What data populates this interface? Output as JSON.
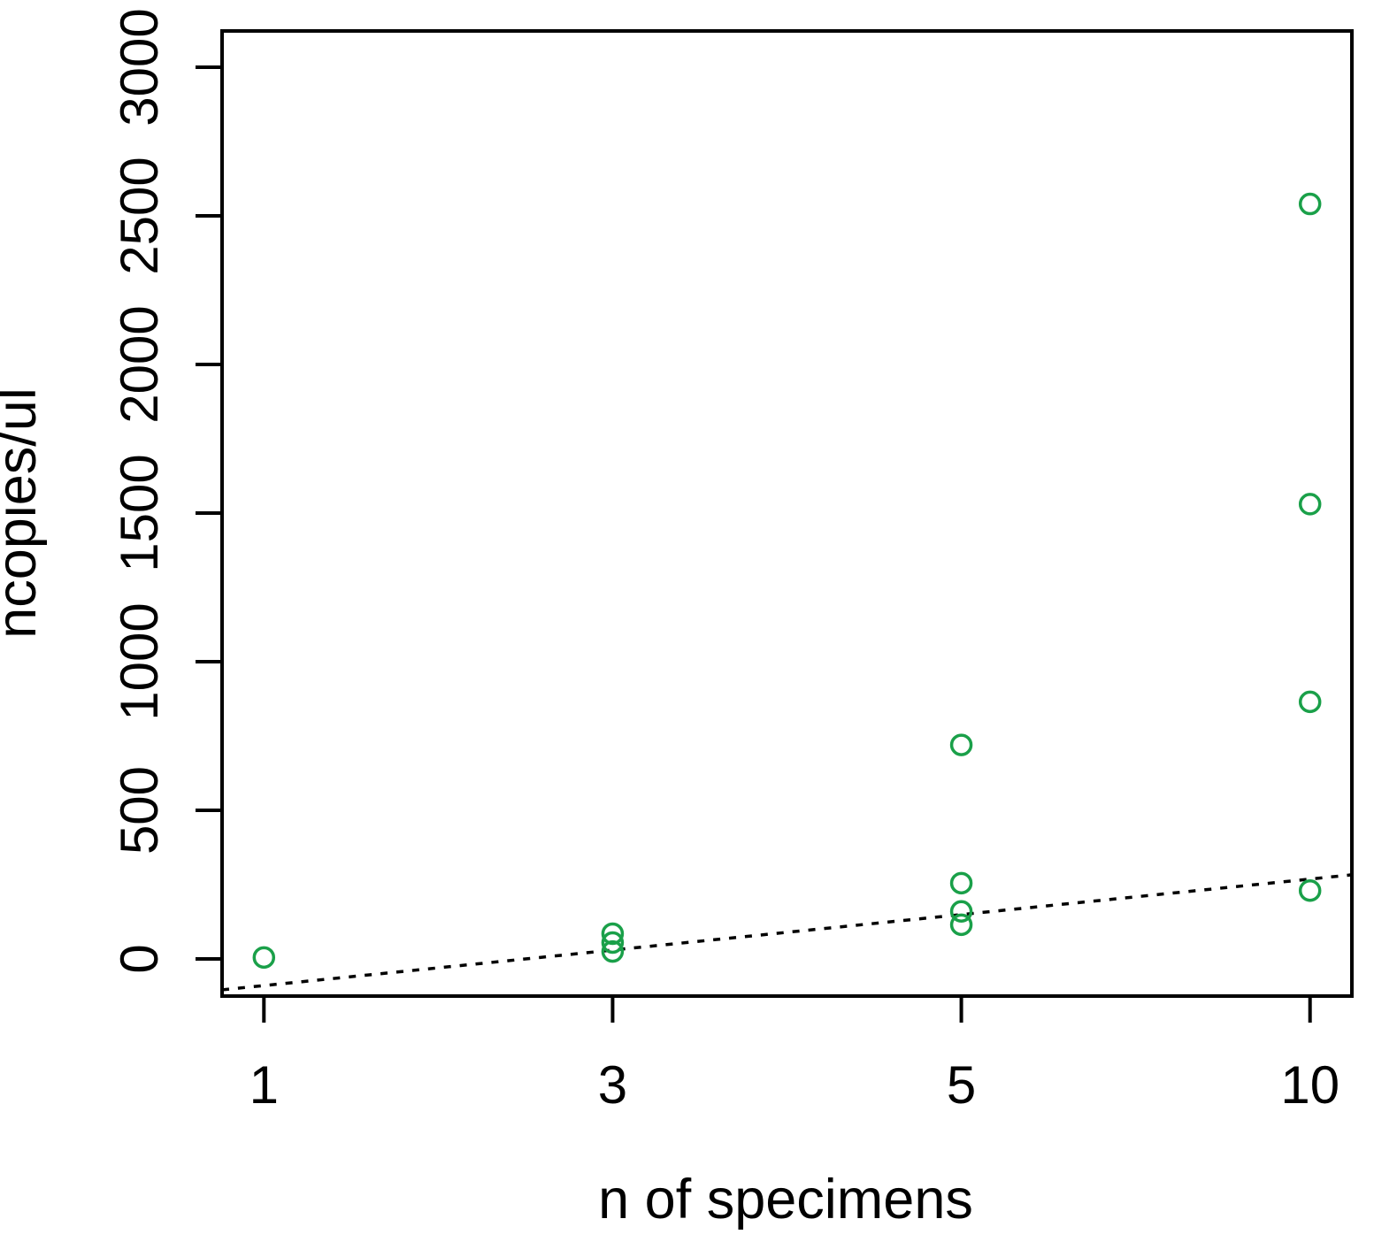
{
  "figure": {
    "background": "#ffffff",
    "axis_color": "#000000",
    "marker_color": "#1aa049"
  },
  "chart_data": {
    "type": "scatter",
    "title": "",
    "xlabel": "n of specimens",
    "ylabel": "ncopies/ul",
    "x_categories": [
      "1",
      "3",
      "5",
      "10"
    ],
    "x_positions": [
      1,
      2,
      3,
      4
    ],
    "xlim": [
      0.88,
      4.12
    ],
    "ylim": [
      -125,
      3122
    ],
    "y_ticks": [
      0,
      500,
      1000,
      1500,
      2000,
      2500,
      3000
    ],
    "grid": false,
    "legend": "none",
    "marker": {
      "shape": "open-circle",
      "color": "#1aa049",
      "radius_px": 11,
      "stroke_px": 3.5
    },
    "points": [
      {
        "category": "1",
        "x": 1,
        "y": 5
      },
      {
        "category": "3",
        "x": 2,
        "y": 85
      },
      {
        "category": "3",
        "x": 2,
        "y": 55
      },
      {
        "category": "3",
        "x": 2,
        "y": 25
      },
      {
        "category": "5",
        "x": 3,
        "y": 720
      },
      {
        "category": "5",
        "x": 3,
        "y": 255
      },
      {
        "category": "5",
        "x": 3,
        "y": 160
      },
      {
        "category": "5",
        "x": 3,
        "y": 115
      },
      {
        "category": "10",
        "x": 4,
        "y": 2540
      },
      {
        "category": "10",
        "x": 4,
        "y": 1530
      },
      {
        "category": "10",
        "x": 4,
        "y": 865
      },
      {
        "category": "10",
        "x": 4,
        "y": 230
      }
    ],
    "trendline": {
      "style": "dotted",
      "color": "#000000",
      "x": [
        0.88,
        4.12
      ],
      "y": [
        -104,
        283
      ]
    }
  }
}
